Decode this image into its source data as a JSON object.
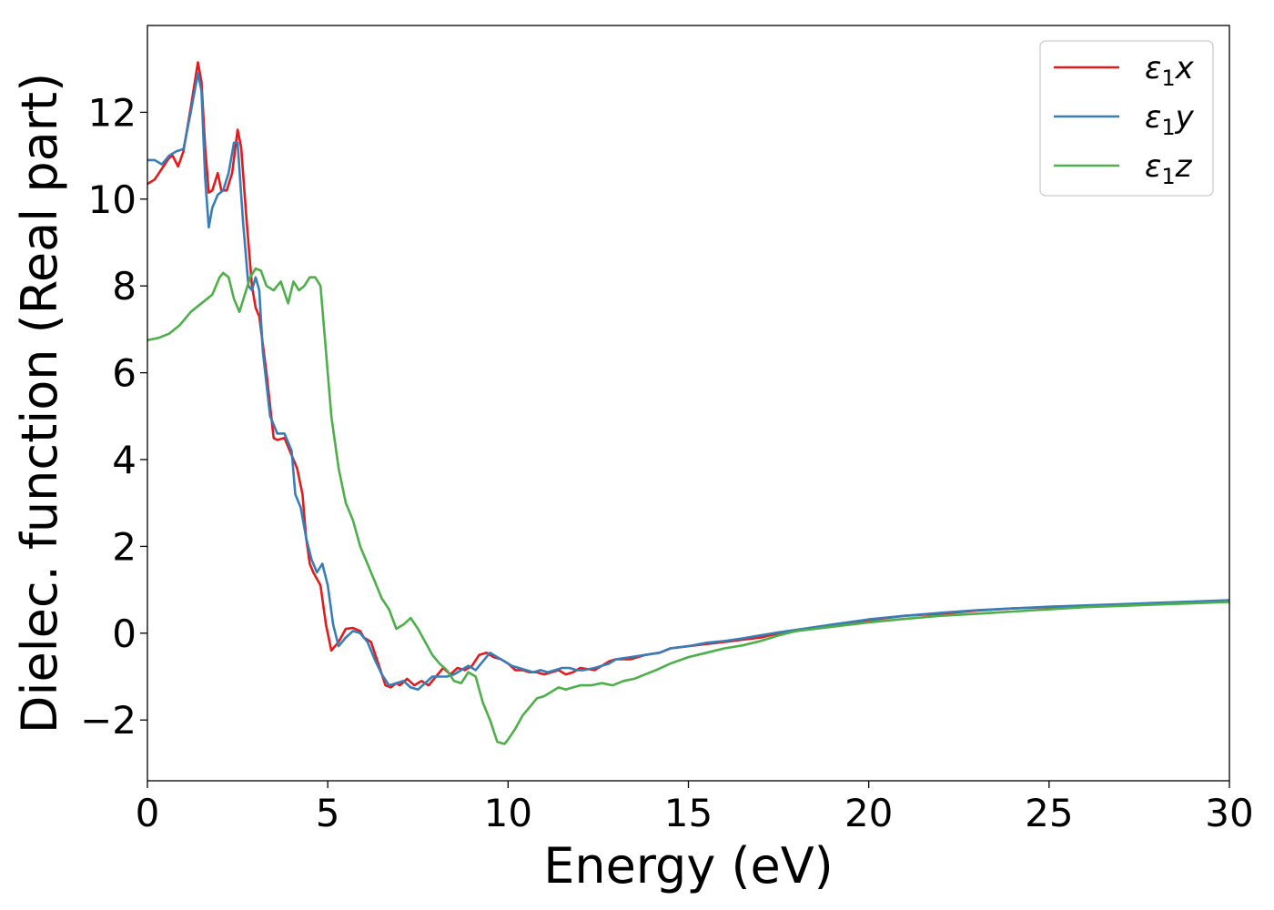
{
  "chart_data": {
    "type": "line",
    "xlabel": "Energy (eV)",
    "ylabel": "Dielec. function (Real part)",
    "xlim": [
      0,
      30
    ],
    "ylim": [
      -3.4,
      14
    ],
    "xticks": [
      0,
      5,
      10,
      15,
      20,
      25,
      30
    ],
    "yticks": [
      -2,
      0,
      2,
      4,
      6,
      8,
      10,
      12
    ],
    "xtick_labels": [
      "0",
      "5",
      "10",
      "15",
      "20",
      "25",
      "30"
    ],
    "ytick_labels": [
      "−2",
      "0",
      "2",
      "4",
      "6",
      "8",
      "10",
      "12"
    ],
    "grid": false,
    "legend_position": "top-right",
    "legend": [
      {
        "base": "ε",
        "sub": "1",
        "comp": "x"
      },
      {
        "base": "ε",
        "sub": "1",
        "comp": "y"
      },
      {
        "base": "ε",
        "sub": "1",
        "comp": "z"
      }
    ],
    "series": [
      {
        "name": "ε1x",
        "color": "#e41a1c",
        "x": [
          0,
          0.2,
          0.4,
          0.6,
          0.7,
          0.85,
          1.0,
          1.2,
          1.4,
          1.5,
          1.6,
          1.7,
          1.8,
          1.95,
          2.05,
          2.2,
          2.35,
          2.5,
          2.6,
          2.75,
          2.9,
          3.0,
          3.1,
          3.3,
          3.5,
          3.6,
          3.8,
          4.0,
          4.15,
          4.3,
          4.4,
          4.5,
          4.6,
          4.8,
          4.95,
          5.1,
          5.3,
          5.5,
          5.7,
          5.9,
          6.0,
          6.2,
          6.4,
          6.6,
          6.75,
          6.9,
          7.0,
          7.2,
          7.4,
          7.6,
          7.8,
          8.0,
          8.2,
          8.4,
          8.6,
          8.8,
          9.0,
          9.2,
          9.4,
          9.6,
          9.8,
          10.0,
          10.2,
          10.4,
          10.6,
          10.8,
          11.0,
          11.2,
          11.4,
          11.6,
          11.8,
          12.0,
          12.4,
          12.8,
          13.0,
          13.4,
          13.8,
          14.2,
          14.5,
          15.0,
          15.5,
          16.0,
          16.5,
          17.0,
          17.5,
          18.0,
          19.0,
          20.0,
          21.0,
          22.0,
          23.0,
          24.0,
          25.0,
          26.0,
          27.0,
          28.0,
          29.0,
          30.0
        ],
        "y": [
          10.35,
          10.45,
          10.7,
          10.95,
          11.0,
          10.75,
          11.1,
          12.1,
          13.15,
          12.7,
          11.2,
          10.15,
          10.2,
          10.6,
          10.2,
          10.2,
          10.6,
          11.6,
          11.2,
          9.5,
          8.0,
          7.5,
          7.3,
          6.0,
          4.5,
          4.45,
          4.5,
          4.1,
          3.8,
          3.2,
          2.2,
          1.6,
          1.4,
          1.1,
          0.2,
          -0.4,
          -0.2,
          0.1,
          0.12,
          0.05,
          -0.1,
          -0.2,
          -0.7,
          -1.2,
          -1.25,
          -1.15,
          -1.2,
          -1.05,
          -1.2,
          -1.1,
          -1.2,
          -1.0,
          -0.8,
          -0.95,
          -0.8,
          -0.85,
          -0.75,
          -0.5,
          -0.45,
          -0.55,
          -0.6,
          -0.7,
          -0.85,
          -0.85,
          -0.9,
          -0.9,
          -0.95,
          -0.9,
          -0.85,
          -0.95,
          -0.9,
          -0.8,
          -0.85,
          -0.65,
          -0.6,
          -0.6,
          -0.5,
          -0.45,
          -0.35,
          -0.3,
          -0.25,
          -0.2,
          -0.15,
          -0.1,
          0.0,
          0.05,
          0.2,
          0.3,
          0.4,
          0.45,
          0.52,
          0.57,
          0.6,
          0.63,
          0.66,
          0.69,
          0.72,
          0.75
        ]
      },
      {
        "name": "ε1y",
        "color": "#377eb8",
        "x": [
          0,
          0.2,
          0.4,
          0.6,
          0.8,
          1.0,
          1.2,
          1.4,
          1.5,
          1.6,
          1.7,
          1.8,
          1.95,
          2.1,
          2.25,
          2.4,
          2.5,
          2.65,
          2.8,
          2.9,
          3.0,
          3.1,
          3.2,
          3.4,
          3.6,
          3.8,
          4.0,
          4.1,
          4.25,
          4.4,
          4.55,
          4.7,
          4.85,
          5.0,
          5.15,
          5.3,
          5.5,
          5.7,
          5.9,
          6.1,
          6.3,
          6.5,
          6.7,
          6.9,
          7.1,
          7.3,
          7.5,
          7.7,
          7.9,
          8.1,
          8.3,
          8.5,
          8.7,
          8.9,
          9.1,
          9.3,
          9.5,
          9.7,
          9.9,
          10.1,
          10.3,
          10.5,
          10.7,
          10.9,
          11.1,
          11.3,
          11.5,
          11.7,
          11.9,
          12.1,
          12.4,
          12.8,
          13.0,
          13.4,
          13.8,
          14.2,
          14.5,
          15.0,
          15.5,
          16.0,
          16.5,
          17.0,
          17.5,
          18.0,
          19.0,
          20.0,
          21.0,
          22.0,
          23.0,
          24.0,
          25.0,
          26.0,
          27.0,
          28.0,
          29.0,
          30.0
        ],
        "y": [
          10.9,
          10.9,
          10.8,
          11.0,
          11.1,
          11.15,
          12.0,
          12.9,
          12.5,
          10.5,
          9.35,
          9.8,
          10.1,
          10.2,
          10.6,
          11.3,
          11.3,
          9.5,
          8.0,
          7.9,
          8.2,
          7.9,
          6.5,
          5.0,
          4.6,
          4.6,
          4.2,
          3.2,
          2.9,
          2.2,
          1.7,
          1.4,
          1.6,
          1.1,
          0.2,
          -0.3,
          -0.1,
          0.05,
          0.0,
          -0.2,
          -0.6,
          -0.95,
          -1.2,
          -1.15,
          -1.1,
          -1.25,
          -1.3,
          -1.15,
          -1.0,
          -1.0,
          -1.0,
          -0.95,
          -0.85,
          -0.75,
          -0.85,
          -0.65,
          -0.45,
          -0.55,
          -0.65,
          -0.75,
          -0.8,
          -0.85,
          -0.9,
          -0.85,
          -0.9,
          -0.85,
          -0.8,
          -0.8,
          -0.85,
          -0.85,
          -0.8,
          -0.7,
          -0.6,
          -0.55,
          -0.5,
          -0.45,
          -0.35,
          -0.3,
          -0.22,
          -0.18,
          -0.12,
          -0.05,
          0.02,
          0.08,
          0.2,
          0.32,
          0.4,
          0.47,
          0.53,
          0.57,
          0.61,
          0.64,
          0.67,
          0.7,
          0.73,
          0.76
        ]
      },
      {
        "name": "ε1z",
        "color": "#4daf4a",
        "x": [
          0,
          0.3,
          0.6,
          0.9,
          1.2,
          1.5,
          1.8,
          2.0,
          2.1,
          2.25,
          2.4,
          2.55,
          2.7,
          2.85,
          3.0,
          3.15,
          3.3,
          3.5,
          3.7,
          3.9,
          4.05,
          4.2,
          4.35,
          4.5,
          4.65,
          4.8,
          4.95,
          5.1,
          5.3,
          5.5,
          5.7,
          5.9,
          6.1,
          6.3,
          6.5,
          6.7,
          6.9,
          7.1,
          7.3,
          7.5,
          7.7,
          7.9,
          8.1,
          8.3,
          8.5,
          8.7,
          8.9,
          9.1,
          9.3,
          9.5,
          9.7,
          9.9,
          10.0,
          10.2,
          10.4,
          10.6,
          10.8,
          11.0,
          11.2,
          11.4,
          11.6,
          11.8,
          12.0,
          12.3,
          12.6,
          12.9,
          13.2,
          13.5,
          13.8,
          14.1,
          14.5,
          15.0,
          15.5,
          16.0,
          16.5,
          17.0,
          17.5,
          18.0,
          19.0,
          20.0,
          21.0,
          22.0,
          23.0,
          24.0,
          25.0,
          26.0,
          27.0,
          28.0,
          29.0,
          30.0
        ],
        "y": [
          6.75,
          6.8,
          6.9,
          7.1,
          7.4,
          7.6,
          7.8,
          8.2,
          8.3,
          8.2,
          7.7,
          7.4,
          7.8,
          8.2,
          8.4,
          8.35,
          8.0,
          7.9,
          8.1,
          7.6,
          8.1,
          7.9,
          8.0,
          8.2,
          8.2,
          8.0,
          6.5,
          5.0,
          3.8,
          3.0,
          2.6,
          2.0,
          1.6,
          1.2,
          0.8,
          0.55,
          0.1,
          0.2,
          0.35,
          0.1,
          -0.2,
          -0.5,
          -0.7,
          -0.85,
          -1.1,
          -1.15,
          -0.9,
          -1.0,
          -1.6,
          -2.0,
          -2.5,
          -2.55,
          -2.45,
          -2.2,
          -1.9,
          -1.7,
          -1.5,
          -1.45,
          -1.35,
          -1.25,
          -1.3,
          -1.25,
          -1.2,
          -1.2,
          -1.15,
          -1.2,
          -1.1,
          -1.05,
          -0.95,
          -0.85,
          -0.7,
          -0.55,
          -0.45,
          -0.35,
          -0.28,
          -0.18,
          -0.05,
          0.05,
          0.15,
          0.25,
          0.33,
          0.4,
          0.45,
          0.5,
          0.55,
          0.6,
          0.63,
          0.66,
          0.69,
          0.72
        ]
      }
    ]
  }
}
